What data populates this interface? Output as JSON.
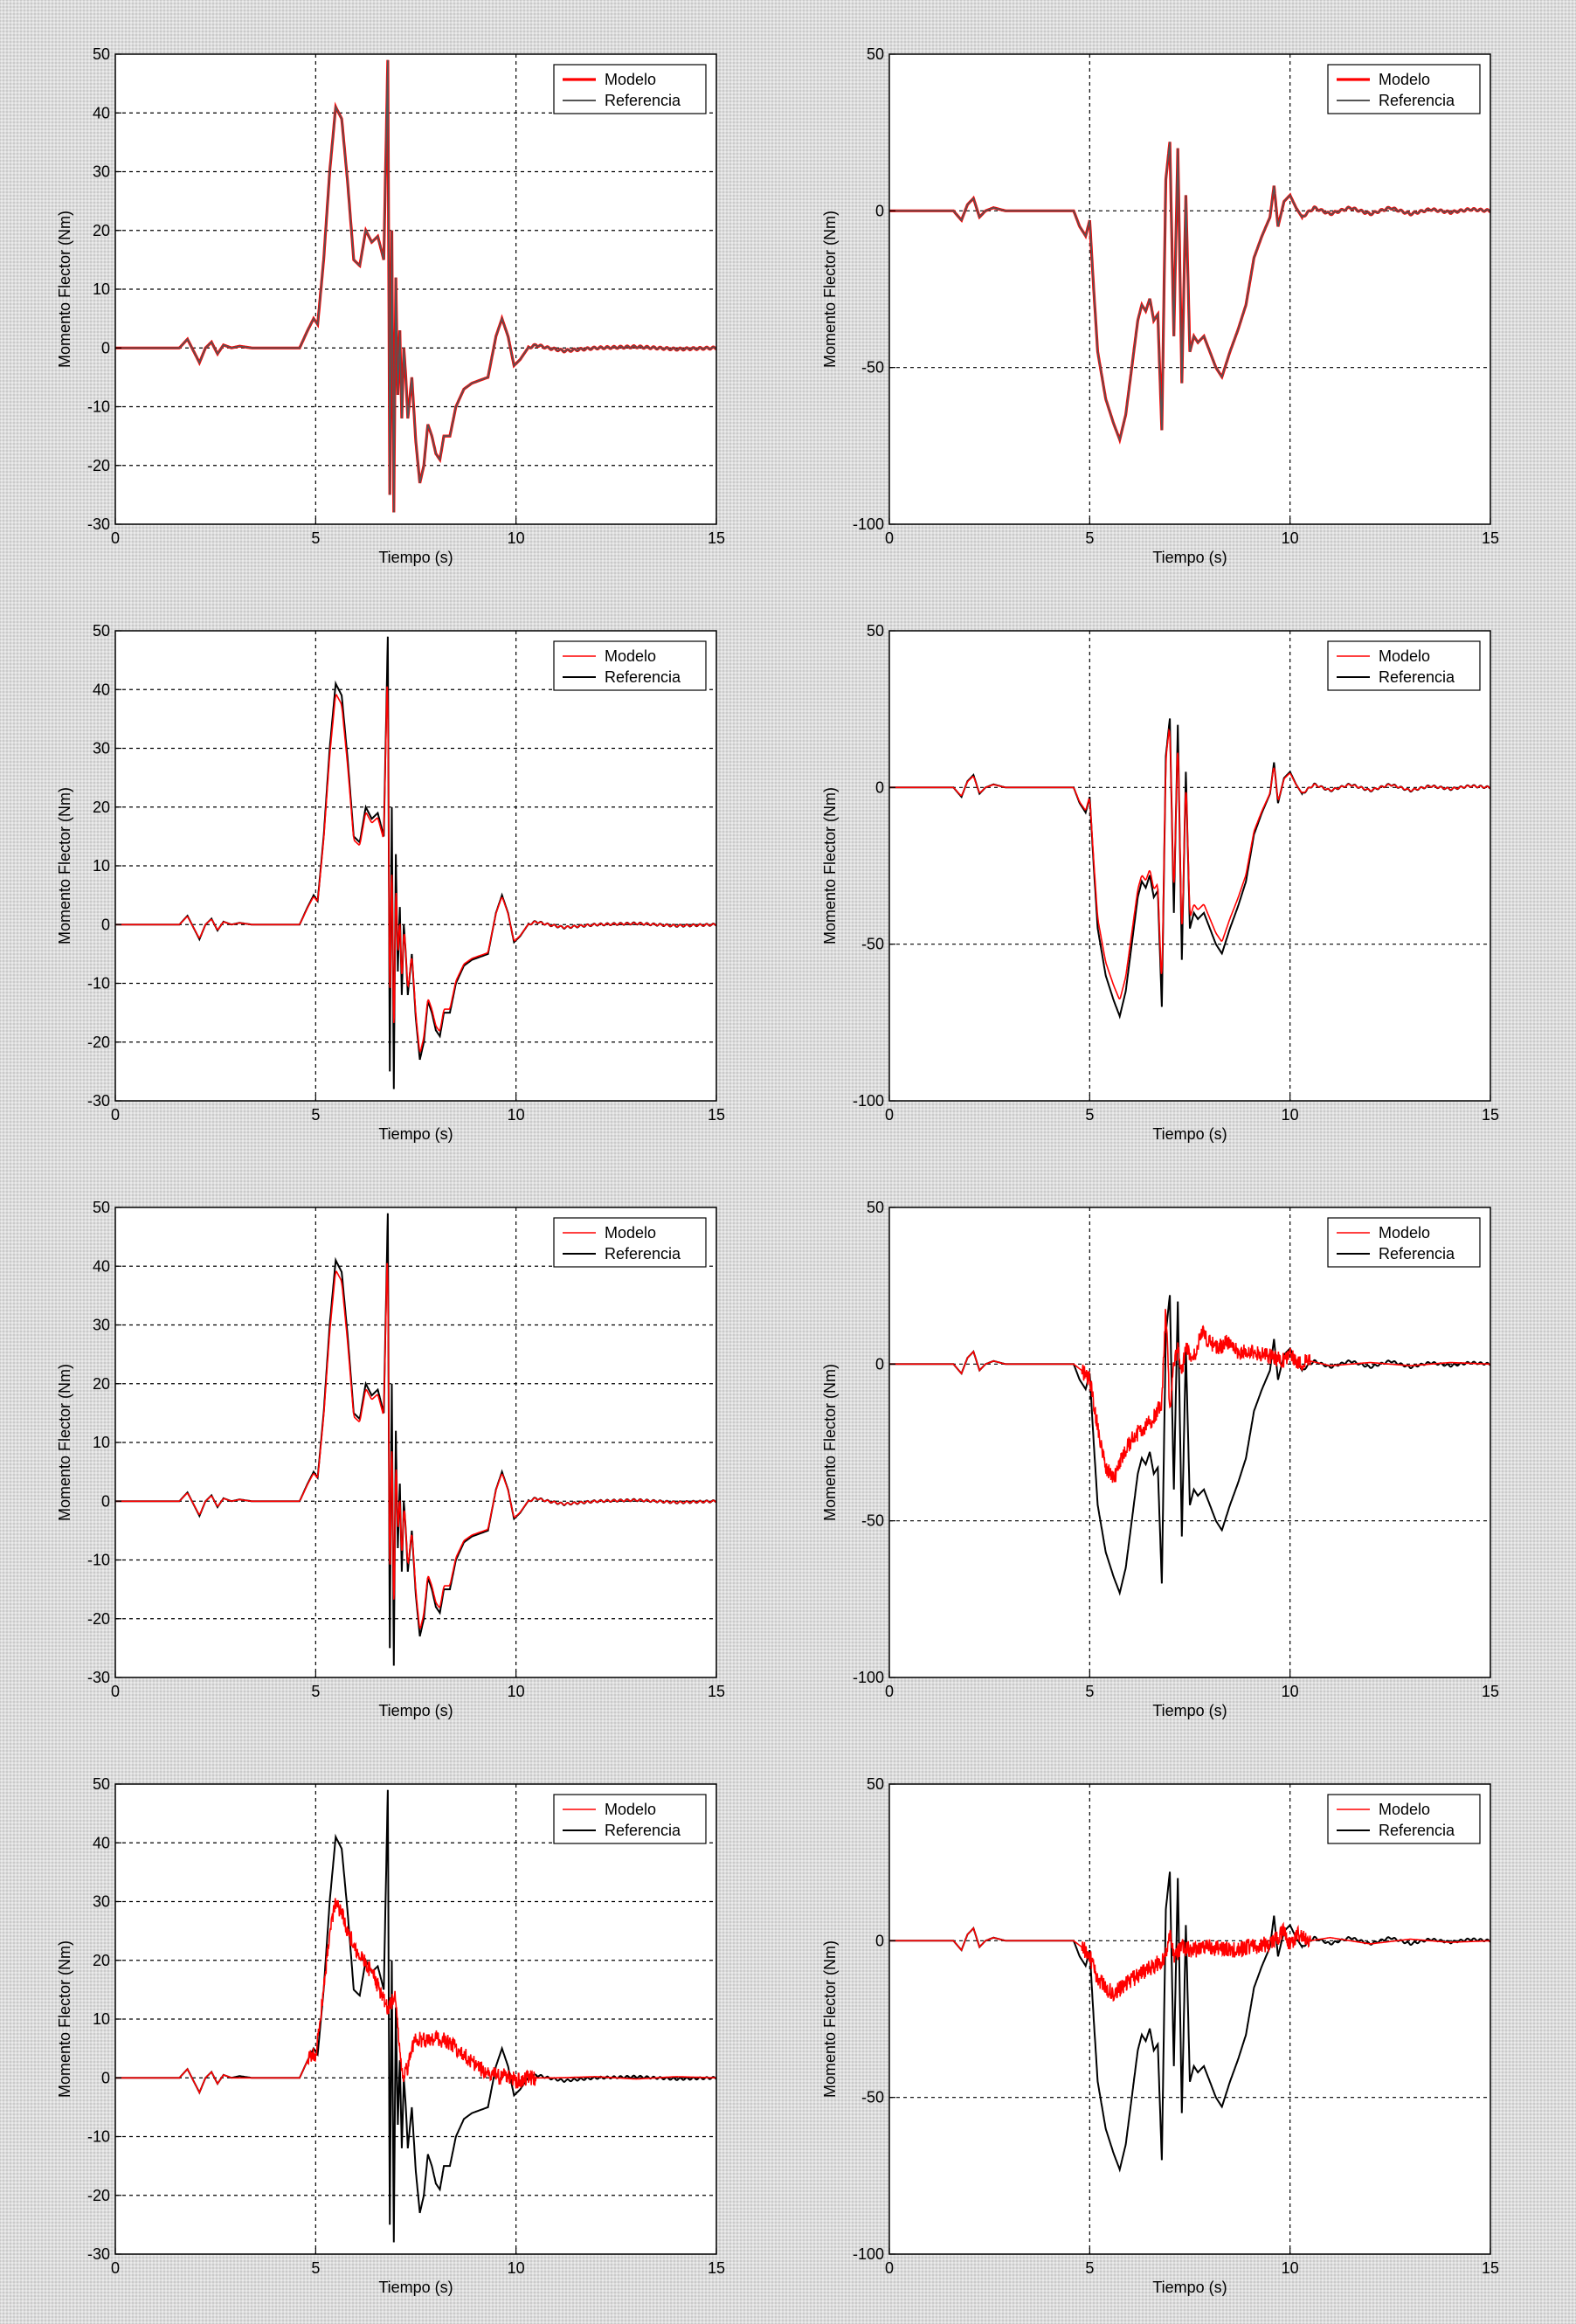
{
  "colors": {
    "modelo": "#ff0000",
    "referencia": "#000000",
    "referencia_light": "#555555",
    "grid": "#000000",
    "background": "#dcdcdc"
  },
  "chart_data": [
    {
      "type": "line",
      "panel": "row1-left",
      "model_variant": "exact",
      "ref_color": "light",
      "xlabel": "Tiempo (s)",
      "ylabel": "Momento Flector (Nm)",
      "xlim": [
        0,
        15
      ],
      "ylim": [
        -30,
        50
      ],
      "xticks": [
        "0",
        "5",
        "10",
        "15"
      ],
      "yticks": [
        "-30",
        "-20",
        "-10",
        "0",
        "10",
        "20",
        "30",
        "40",
        "50"
      ],
      "grid": true,
      "legend_position": "top-right",
      "series": [
        {
          "name": "Modelo"
        },
        {
          "name": "Referencia",
          "x": [
            0,
            1.6,
            1.8,
            1.95,
            2.1,
            2.25,
            2.4,
            2.55,
            2.7,
            2.9,
            3.1,
            3.4,
            4.6,
            4.8,
            4.95,
            5.05,
            5.2,
            5.35,
            5.5,
            5.65,
            5.8,
            5.95,
            6.1,
            6.25,
            6.4,
            6.55,
            6.7,
            6.8,
            6.85,
            6.9,
            6.95,
            7.0,
            7.05,
            7.1,
            7.15,
            7.2,
            7.25,
            7.3,
            7.4,
            7.5,
            7.6,
            7.7,
            7.8,
            7.9,
            8.0,
            8.1,
            8.2,
            8.35,
            8.5,
            8.7,
            8.9,
            9.1,
            9.3,
            9.5,
            9.65,
            9.8,
            9.95,
            10.1,
            10.3,
            10.5,
            10.8,
            11.2,
            12,
            13,
            14,
            15
          ],
          "y": [
            0,
            0,
            1.5,
            -0.5,
            -2.5,
            0,
            1,
            -1,
            0.5,
            0,
            0.3,
            0,
            0,
            3,
            5,
            4,
            15,
            30,
            41,
            39,
            28,
            15,
            14,
            20,
            18,
            19,
            15,
            49,
            -25,
            20,
            -28,
            12,
            -8,
            3,
            -12,
            0,
            -5,
            -12,
            -5,
            -16,
            -23,
            -20,
            -13,
            -15,
            -18,
            -19,
            -15,
            -15,
            -10,
            -7,
            -6,
            -5.5,
            -5,
            2,
            5,
            2,
            -3,
            -2,
            0,
            0.5,
            0,
            -0.5,
            0,
            0.2,
            -0.2,
            0
          ]
        }
      ]
    },
    {
      "type": "line",
      "panel": "row1-right",
      "model_variant": "exact",
      "ref_color": "light",
      "xlabel": "Tiempo (s)",
      "ylabel": "Momento Flector (Nm)",
      "xlim": [
        0,
        15
      ],
      "ylim": [
        -100,
        50
      ],
      "xticks": [
        "0",
        "5",
        "10",
        "15"
      ],
      "yticks": [
        "-100",
        "-50",
        "0",
        "50"
      ],
      "grid": true,
      "legend_position": "top-right",
      "series": [
        {
          "name": "Modelo"
        },
        {
          "name": "Referencia",
          "x": [
            0,
            1.6,
            1.8,
            1.95,
            2.1,
            2.25,
            2.4,
            2.6,
            2.9,
            4.6,
            4.75,
            4.9,
            5.0,
            5.1,
            5.2,
            5.4,
            5.6,
            5.75,
            5.9,
            6.0,
            6.1,
            6.2,
            6.3,
            6.4,
            6.5,
            6.6,
            6.7,
            6.8,
            6.9,
            7.0,
            7.1,
            7.2,
            7.3,
            7.4,
            7.5,
            7.6,
            7.7,
            7.85,
            8.0,
            8.15,
            8.3,
            8.5,
            8.7,
            8.9,
            9.1,
            9.3,
            9.5,
            9.6,
            9.7,
            9.85,
            10.0,
            10.15,
            10.3,
            10.6,
            11,
            11.5,
            12,
            12.5,
            13,
            13.5,
            14,
            14.5,
            15
          ],
          "y": [
            0,
            0,
            -3,
            2,
            4,
            -2,
            0,
            1,
            0,
            0,
            -5,
            -8,
            -3,
            -25,
            -45,
            -60,
            -68,
            -73,
            -65,
            -55,
            -45,
            -35,
            -30,
            -32,
            -28,
            -35,
            -33,
            -70,
            10,
            22,
            -40,
            20,
            -55,
            5,
            -45,
            -40,
            -42,
            -40,
            -45,
            -50,
            -53,
            -45,
            -38,
            -30,
            -15,
            -8,
            -2,
            8,
            -5,
            3,
            5,
            1,
            -2,
            1,
            -1,
            1,
            -1,
            1,
            -1,
            0.5,
            -0.5,
            0.5,
            0
          ]
        }
      ]
    },
    {
      "type": "line",
      "panel": "row2-left",
      "model_variant": "close",
      "ref_color": "dark",
      "xlabel": "Tiempo (s)",
      "ylabel": "Momento Flector (Nm)",
      "xlim": [
        0,
        15
      ],
      "ylim": [
        -30,
        50
      ],
      "xticks": [
        "0",
        "5",
        "10",
        "15"
      ],
      "yticks": [
        "-30",
        "-20",
        "-10",
        "0",
        "10",
        "20",
        "30",
        "40",
        "50"
      ],
      "grid": true,
      "legend_position": "top-right",
      "series": [
        {
          "name": "Modelo"
        },
        {
          "name": "Referencia"
        }
      ]
    },
    {
      "type": "line",
      "panel": "row2-right",
      "model_variant": "close",
      "ref_color": "dark",
      "xlabel": "Tiempo (s)",
      "ylabel": "Momento Flector (Nm)",
      "xlim": [
        0,
        15
      ],
      "ylim": [
        -100,
        50
      ],
      "xticks": [
        "0",
        "5",
        "10",
        "15"
      ],
      "yticks": [
        "-100",
        "-50",
        "0",
        "50"
      ],
      "grid": true,
      "legend_position": "top-right",
      "series": [
        {
          "name": "Modelo"
        },
        {
          "name": "Referencia"
        }
      ]
    },
    {
      "type": "line",
      "panel": "row3-left",
      "model_variant": "close",
      "ref_color": "dark",
      "xlabel": "Tiempo (s)",
      "ylabel": "Momento Flector (Nm)",
      "xlim": [
        0,
        15
      ],
      "ylim": [
        -30,
        50
      ],
      "xticks": [
        "0",
        "5",
        "10",
        "15"
      ],
      "yticks": [
        "-30",
        "-20",
        "-10",
        "0",
        "10",
        "20",
        "30",
        "40",
        "50"
      ],
      "grid": true,
      "legend_position": "top-right",
      "series": [
        {
          "name": "Modelo"
        },
        {
          "name": "Referencia"
        }
      ]
    },
    {
      "type": "line",
      "panel": "row3-right",
      "model_variant": "custom",
      "ref_color": "dark",
      "xlabel": "Tiempo (s)",
      "ylabel": "Momento Flector (Nm)",
      "xlim": [
        0,
        15
      ],
      "ylim": [
        -100,
        50
      ],
      "xticks": [
        "0",
        "5",
        "10",
        "15"
      ],
      "yticks": [
        "-100",
        "-50",
        "0",
        "50"
      ],
      "grid": true,
      "legend_position": "top-right",
      "series": [
        {
          "name": "Modelo",
          "x": [
            0,
            1.6,
            1.8,
            1.95,
            2.1,
            2.25,
            2.4,
            2.6,
            2.9,
            4.6,
            4.8,
            5.0,
            5.2,
            5.4,
            5.6,
            5.8,
            6.0,
            6.2,
            6.4,
            6.6,
            6.8,
            6.9,
            7.0,
            7.1,
            7.2,
            7.3,
            7.4,
            7.6,
            7.8,
            8.0,
            8.2,
            8.4,
            8.7,
            9.0,
            9.3,
            9.6,
            9.8,
            10.0,
            10.2,
            10.5,
            11,
            12,
            13,
            14,
            15
          ],
          "y": [
            0,
            0,
            -3,
            2,
            4,
            -2,
            0,
            1,
            0,
            0,
            -2,
            -5,
            -20,
            -33,
            -37,
            -30,
            -25,
            -22,
            -20,
            -17,
            -12,
            18,
            -15,
            0,
            5,
            -2,
            5,
            2,
            10,
            7,
            5,
            7,
            4,
            4,
            3,
            2,
            1,
            3,
            0,
            1,
            -0.5,
            0.5,
            -0.5,
            0.5,
            0
          ]
        },
        {
          "name": "Referencia"
        }
      ]
    },
    {
      "type": "line",
      "panel": "row4-left",
      "model_variant": "custom",
      "ref_color": "dark",
      "xlabel": "Tiempo (s)",
      "ylabel": "Momento Flector (Nm)",
      "xlim": [
        0,
        15
      ],
      "ylim": [
        -30,
        50
      ],
      "xticks": [
        "0",
        "5",
        "10",
        "15"
      ],
      "yticks": [
        "-30",
        "-20",
        "-10",
        "0",
        "10",
        "20",
        "30",
        "40",
        "50"
      ],
      "grid": true,
      "legend_position": "top-right",
      "series": [
        {
          "name": "Modelo",
          "x": [
            0,
            1.6,
            1.8,
            1.95,
            2.1,
            2.25,
            2.4,
            2.55,
            2.7,
            2.9,
            3.4,
            4.6,
            4.8,
            5.0,
            5.2,
            5.35,
            5.5,
            5.65,
            5.8,
            6.0,
            6.2,
            6.4,
            6.6,
            6.8,
            7.0,
            7.1,
            7.2,
            7.3,
            7.5,
            7.8,
            8.0,
            8.3,
            8.5,
            8.7,
            9.0,
            9.3,
            9.6,
            9.8,
            10.0,
            10.3,
            11,
            12,
            13,
            14,
            15
          ],
          "y": [
            0,
            0,
            1.5,
            -0.5,
            -2.5,
            0,
            1,
            -1,
            0.5,
            0,
            0,
            0,
            3,
            4,
            15,
            25,
            30,
            28,
            25,
            22,
            20,
            18,
            15,
            12,
            14,
            4,
            0,
            2,
            7,
            6,
            7,
            6,
            5,
            4,
            2,
            1,
            0,
            0.5,
            -0.5,
            0,
            0,
            0.2,
            -0.2,
            0.2,
            0
          ]
        },
        {
          "name": "Referencia"
        }
      ]
    },
    {
      "type": "line",
      "panel": "row4-right",
      "model_variant": "custom",
      "ref_color": "dark",
      "xlabel": "Tiempo (s)",
      "ylabel": "Momento Flector (Nm)",
      "xlim": [
        0,
        15
      ],
      "ylim": [
        -100,
        50
      ],
      "xticks": [
        "0",
        "5",
        "10",
        "15"
      ],
      "yticks": [
        "-100",
        "-50",
        "0",
        "50"
      ],
      "grid": true,
      "legend_position": "top-right",
      "series": [
        {
          "name": "Modelo",
          "x": [
            0,
            1.6,
            1.8,
            1.95,
            2.1,
            2.25,
            2.4,
            2.6,
            2.9,
            4.6,
            4.8,
            5.0,
            5.2,
            5.4,
            5.6,
            5.8,
            6.0,
            6.3,
            6.6,
            6.9,
            7.0,
            7.1,
            7.3,
            7.6,
            8.0,
            8.5,
            9.0,
            9.5,
            9.7,
            9.85,
            10.0,
            10.2,
            10.5,
            11,
            12,
            13,
            14,
            15
          ],
          "y": [
            0,
            0,
            -3,
            2,
            4,
            -2,
            0,
            1,
            0,
            0,
            -2,
            -5,
            -12,
            -15,
            -17,
            -15,
            -13,
            -10,
            -8,
            -5,
            3,
            -5,
            -2,
            -3,
            -2,
            -3,
            -2,
            -1,
            1,
            4,
            -2,
            2,
            0,
            1,
            -1,
            0.5,
            -0.5,
            0
          ]
        },
        {
          "name": "Referencia"
        }
      ]
    }
  ]
}
